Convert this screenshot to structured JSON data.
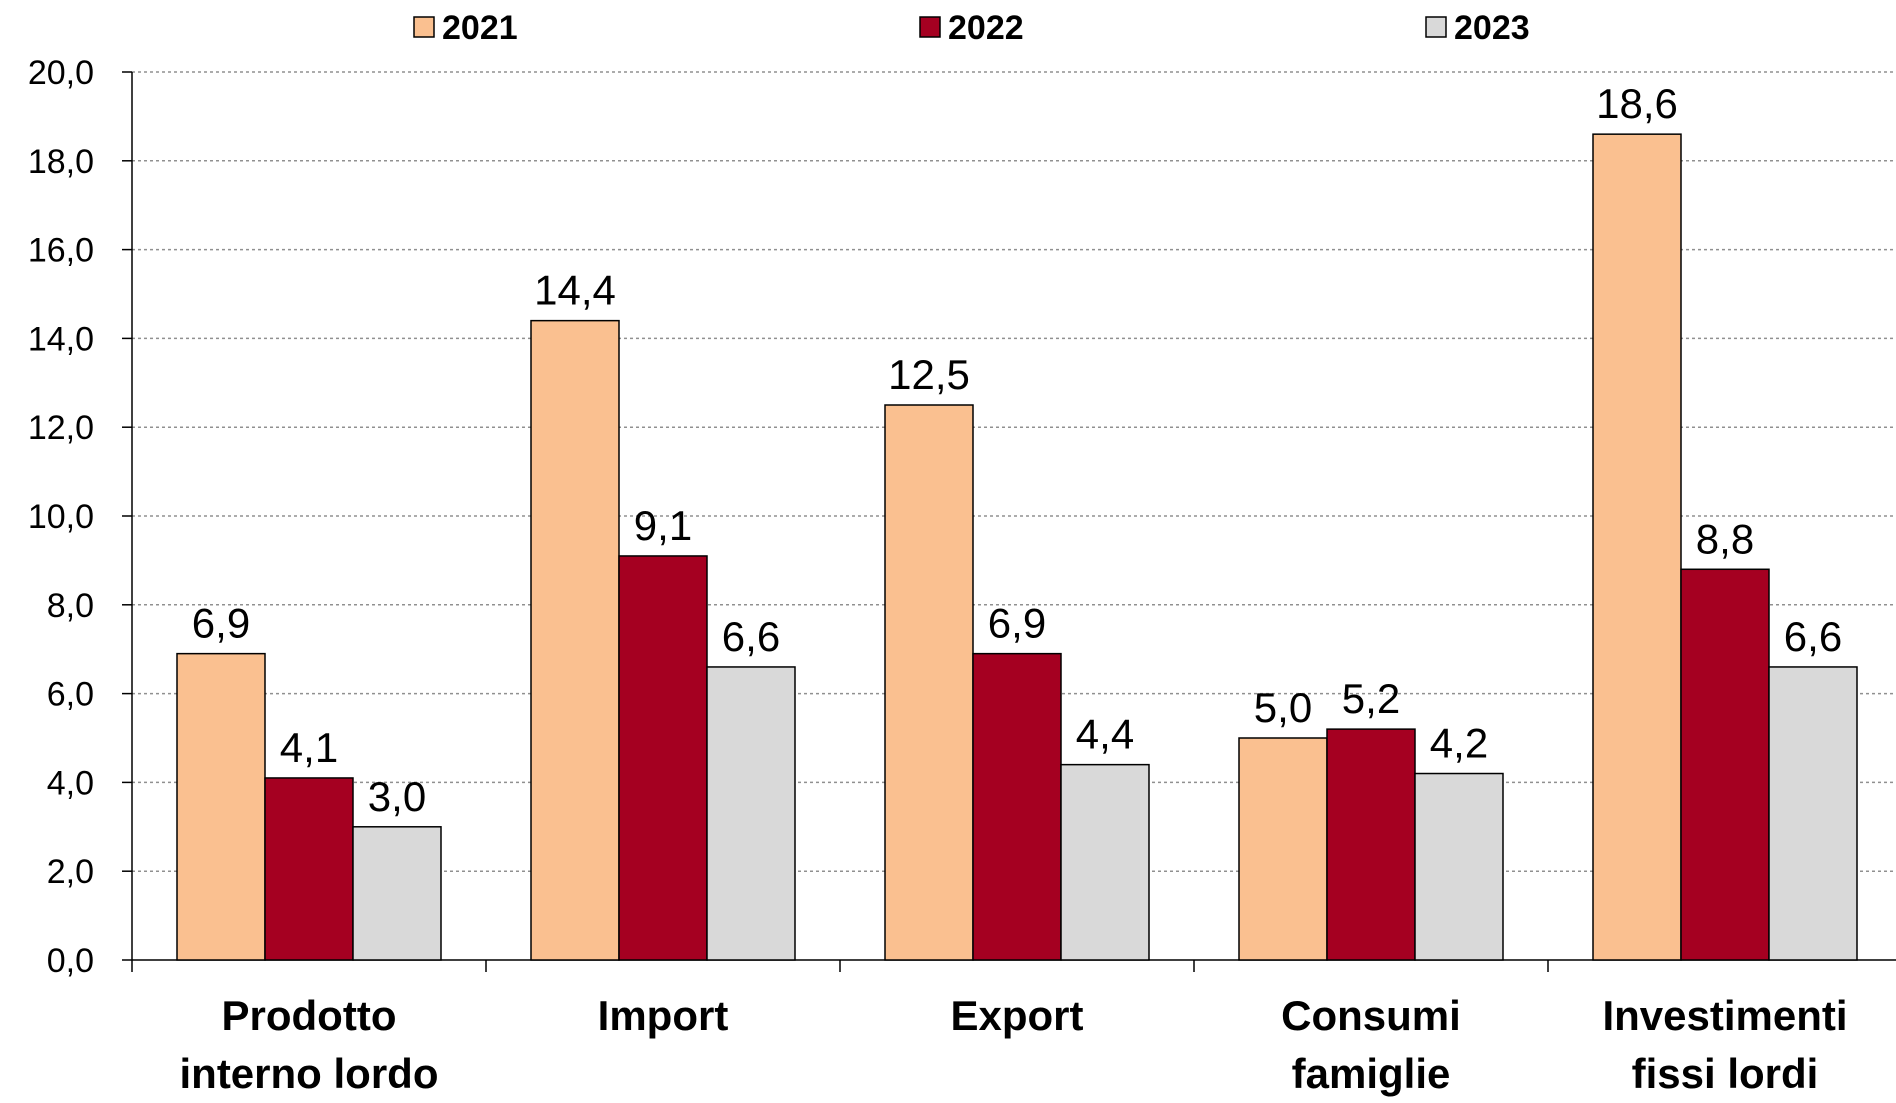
{
  "chart_data": {
    "type": "bar",
    "categories": [
      [
        "Prodotto",
        "interno lordo"
      ],
      [
        "Import"
      ],
      [
        "Export"
      ],
      [
        "Consumi",
        "famiglie"
      ],
      [
        "Investimenti",
        "fissi lordi"
      ]
    ],
    "series": [
      {
        "name": "2021",
        "color": "#FAC090",
        "values": [
          6.9,
          14.4,
          12.5,
          5.0,
          18.6
        ]
      },
      {
        "name": "2022",
        "color": "#A50021",
        "values": [
          4.1,
          9.1,
          6.9,
          5.2,
          8.8
        ]
      },
      {
        "name": "2023",
        "color": "#D9D9D9",
        "values": [
          3.0,
          6.6,
          4.4,
          4.2,
          6.6
        ]
      }
    ],
    "data_labels": [
      [
        "6,9",
        "14,4",
        "12,5",
        "5,0",
        "18,6"
      ],
      [
        "4,1",
        "9,1",
        "6,9",
        "5,2",
        "8,8"
      ],
      [
        "3,0",
        "6,6",
        "4,4",
        "4,2",
        "6,6"
      ]
    ],
    "ylim": [
      0,
      20
    ],
    "ytick_labels": [
      "0,0",
      "2,0",
      "4,0",
      "6,0",
      "8,0",
      "10,0",
      "12,0",
      "14,0",
      "16,0",
      "18,0",
      "20,0"
    ],
    "grid": true,
    "legend_position": "top"
  }
}
